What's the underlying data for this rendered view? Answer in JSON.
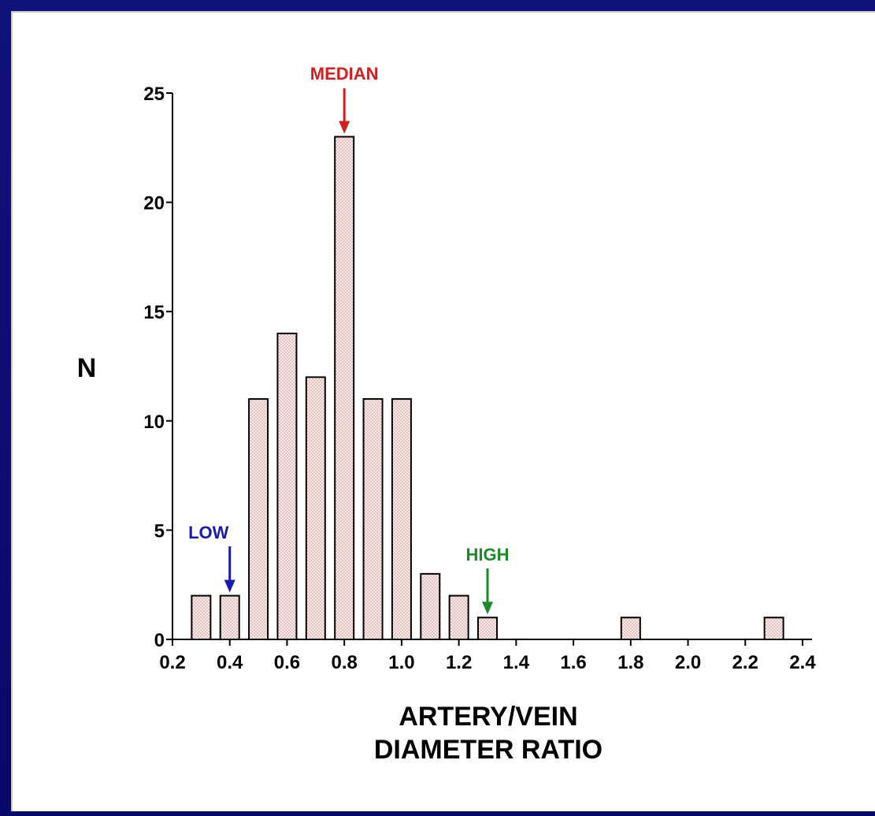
{
  "chart_data": {
    "type": "bar",
    "xlabel_lines": [
      "ARTERY/VEIN",
      "DIAMETER RATIO"
    ],
    "ylabel": "N",
    "x_ticks": [
      "0.2",
      "0.4",
      "0.6",
      "0.8",
      "1.0",
      "1.2",
      "1.4",
      "1.6",
      "1.8",
      "2.0",
      "2.2",
      "2.4"
    ],
    "y_ticks": [
      "0",
      "5",
      "10",
      "15",
      "20",
      "25"
    ],
    "xlim": [
      0.2,
      2.4
    ],
    "ylim": [
      0,
      25
    ],
    "bars": [
      {
        "x": 0.3,
        "value": 2
      },
      {
        "x": 0.4,
        "value": 2
      },
      {
        "x": 0.5,
        "value": 11
      },
      {
        "x": 0.6,
        "value": 14
      },
      {
        "x": 0.7,
        "value": 12
      },
      {
        "x": 0.8,
        "value": 23
      },
      {
        "x": 0.9,
        "value": 11
      },
      {
        "x": 1.0,
        "value": 11
      },
      {
        "x": 1.1,
        "value": 3
      },
      {
        "x": 1.2,
        "value": 2
      },
      {
        "x": 1.3,
        "value": 1
      },
      {
        "x": 1.8,
        "value": 1
      },
      {
        "x": 2.3,
        "value": 1
      }
    ],
    "bar_fill": "#fde8e8",
    "bar_dot_color": "#b89090",
    "annotations": [
      {
        "label": "LOW",
        "x": 0.4,
        "color": "#1a1ab0"
      },
      {
        "label": "MEDIAN",
        "x": 0.8,
        "color": "#d02020"
      },
      {
        "label": "HIGH",
        "x": 1.3,
        "color": "#1a8a2a"
      }
    ]
  },
  "colors": {
    "frame": "#0a0a6e",
    "panel": "#ffffff"
  }
}
